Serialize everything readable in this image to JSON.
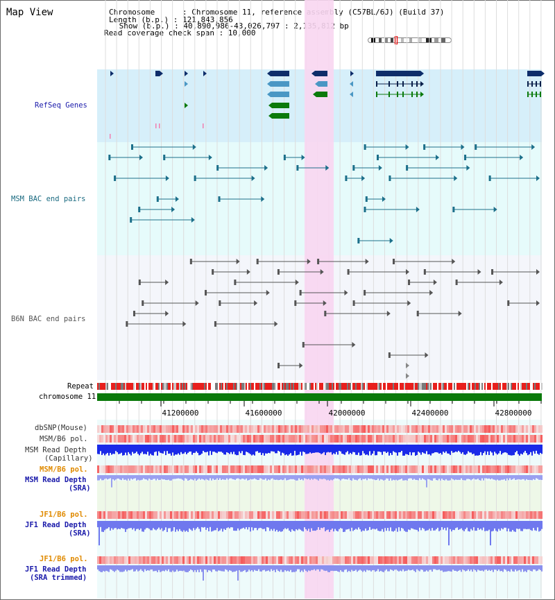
{
  "page": {
    "title": "Map View"
  },
  "info": {
    "chromosome": "Chromosome      : Chromosome 11, reference assembly (C57BL/6J) (Build 37)",
    "length": "Length (b.p.) : 121,843,856",
    "show": " Show (b.p.) : 40,890,986-43,026,797 : 2,135,812 bp",
    "span": "Read coverage check span : 10,000"
  },
  "tracks": {
    "refseq": "RefSeq Genes",
    "msm_bac": "MSM BAC end pairs",
    "b6n_bac": "B6N BAC end pairs",
    "repeat": "Repeat",
    "chromosome": "chromosome 11",
    "dbsnp": "dbSNP(Mouse)",
    "msm_b6_pol": "MSM/B6 pol.",
    "msm_depth_cap_1": "MSM Read Depth",
    "msm_depth_cap_2": "(Capillary)",
    "msm_b6_pol_sra": "MSM/B6 pol.",
    "msm_depth_sra_1": "MSM Read Depth",
    "msm_depth_sra_2": "(SRA)",
    "jf1_b6_pol": "JF1/B6 pol.",
    "jf1_depth_sra_1": "JF1 Read Depth",
    "jf1_depth_sra_2": "(SRA)",
    "jf1_b6_pol_trim": "JF1/B6 pol.",
    "jf1_depth_trim_1": "JF1 Read Depth",
    "jf1_depth_trim_2": "(SRA trimmed)"
  },
  "axis": {
    "ticks": [
      "41200000",
      "41600000",
      "42000000",
      "42400000",
      "42800000"
    ]
  },
  "colors": {
    "refseq_bg": "#d6effa",
    "msm_bg": "#e6fbfb",
    "b6n_bg": "#f4f6fb",
    "highlight": "#f8d6f1",
    "gene_dark": "#0e2d6a",
    "gene_mid": "#4a97c4",
    "gene_green": "#0b7a0b",
    "msm_pair": "#1c6f8a",
    "b6n_pair": "#555555",
    "chrom_bar": "#0b7a0b",
    "label_blue": "#1a1aaa",
    "label_teal": "#1a6a80",
    "label_orange": "#e08a00",
    "label_dark": "#333333"
  }
}
